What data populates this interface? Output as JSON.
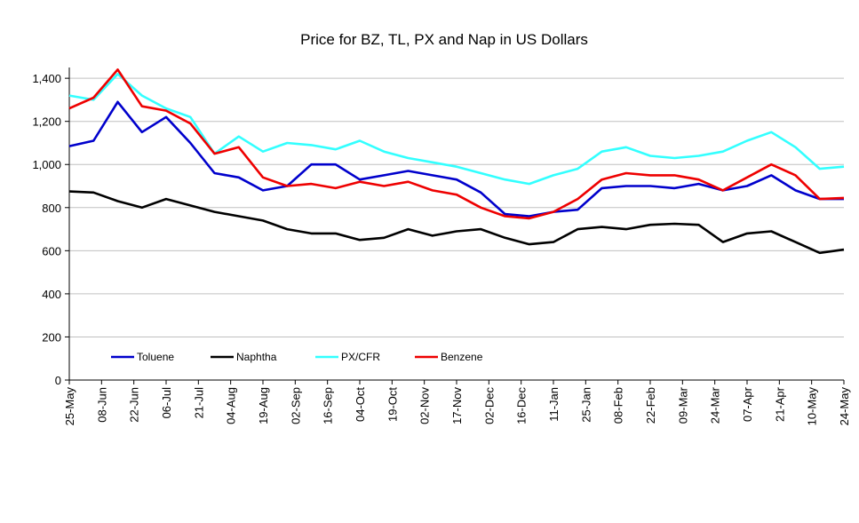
{
  "chart_data": {
    "type": "line",
    "title": "Price for BZ, TL, PX and Nap in US Dollars",
    "xlabel": "",
    "ylabel": "",
    "ylim": [
      0,
      1450
    ],
    "yticks": [
      "0",
      "200",
      "400",
      "600",
      "800",
      "1,000",
      "1,200",
      "1,400"
    ],
    "ytick_values": [
      0,
      200,
      400,
      600,
      800,
      1000,
      1200,
      1400
    ],
    "grid": true,
    "legend_position": "lower-left",
    "x_tick_labels": [
      "25-May",
      "08-Jun",
      "22-Jun",
      "06-Jul",
      "21-Jul",
      "04-Aug",
      "19-Aug",
      "02-Sep",
      "16-Sep",
      "04-Oct",
      "19-Oct",
      "02-Nov",
      "17-Nov",
      "02-Dec",
      "16-Dec",
      "11-Jan",
      "25-Jan",
      "08-Feb",
      "22-Feb",
      "09-Mar",
      "24-Mar",
      "07-Apr",
      "21-Apr",
      "10-May",
      "24-May"
    ],
    "series": [
      {
        "name": "Toluene",
        "color": "#0000cc",
        "values": [
          1085,
          1110,
          1290,
          1150,
          1220,
          1100,
          960,
          940,
          880,
          900,
          1000,
          1000,
          930,
          950,
          970,
          950,
          930,
          870,
          770,
          760,
          780,
          790,
          890,
          900,
          900,
          890,
          910,
          880,
          900,
          950,
          880,
          840,
          840
        ]
      },
      {
        "name": "Naphtha",
        "color": "#000000",
        "values": [
          875,
          870,
          830,
          800,
          840,
          810,
          780,
          760,
          740,
          700,
          680,
          680,
          650,
          660,
          700,
          670,
          690,
          700,
          660,
          630,
          640,
          700,
          710,
          700,
          720,
          725,
          720,
          640,
          680,
          690,
          640,
          590,
          605
        ]
      },
      {
        "name": "PX/CFR",
        "color": "#33ffff",
        "values": [
          1320,
          1300,
          1420,
          1320,
          1260,
          1220,
          1050,
          1130,
          1060,
          1100,
          1090,
          1070,
          1110,
          1060,
          1030,
          1010,
          990,
          960,
          930,
          910,
          950,
          980,
          1060,
          1080,
          1040,
          1030,
          1040,
          1060,
          1110,
          1150,
          1080,
          980,
          990
        ]
      },
      {
        "name": "Benzene",
        "color": "#ee0000",
        "values": [
          1260,
          1310,
          1440,
          1270,
          1250,
          1190,
          1050,
          1080,
          940,
          900,
          910,
          890,
          920,
          900,
          920,
          880,
          860,
          800,
          760,
          750,
          780,
          840,
          930,
          960,
          950,
          950,
          930,
          880,
          940,
          1000,
          950,
          840,
          845
        ]
      }
    ]
  }
}
